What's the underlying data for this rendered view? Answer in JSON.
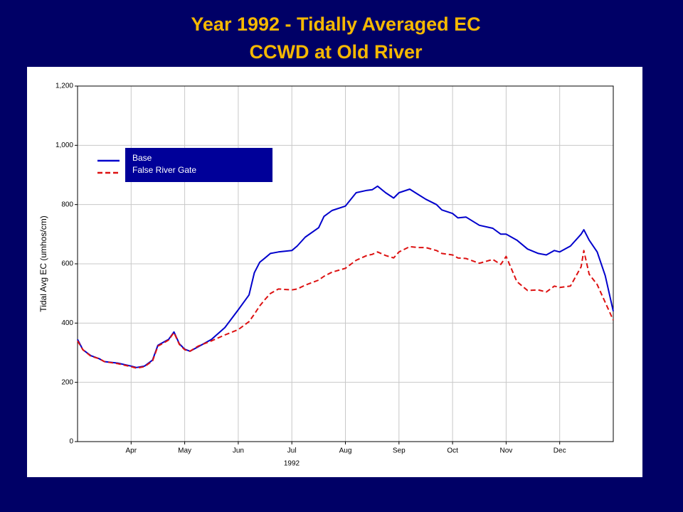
{
  "chart_data": {
    "type": "line",
    "title": "Year 1992 - Tidally Averaged EC",
    "subtitle": "CCWD at Old River",
    "ylabel": "Tidal Avg EC (umhos/cm)",
    "xlabel": "1992",
    "x": [
      3.0,
      3.1,
      3.25,
      3.4,
      3.5,
      3.75,
      4.0,
      4.1,
      4.25,
      4.4,
      4.5,
      4.6,
      4.7,
      4.8,
      4.9,
      5.0,
      5.1,
      5.25,
      5.5,
      5.75,
      6.0,
      6.2,
      6.3,
      6.4,
      6.5,
      6.6,
      6.75,
      7.0,
      7.1,
      7.25,
      7.5,
      7.6,
      7.75,
      8.0,
      8.2,
      8.4,
      8.5,
      8.6,
      8.75,
      8.9,
      9.0,
      9.2,
      9.35,
      9.5,
      9.7,
      9.8,
      10.0,
      10.1,
      10.25,
      10.5,
      10.75,
      10.9,
      11.0,
      11.2,
      11.4,
      11.6,
      11.75,
      11.9,
      12.0,
      12.2,
      12.4,
      12.45,
      12.55,
      12.7,
      12.85,
      13.0
    ],
    "series": [
      {
        "name": "Base",
        "color": "#0000cc",
        "dash": false,
        "values": [
          345,
          310,
          290,
          280,
          270,
          265,
          255,
          250,
          255,
          275,
          325,
          335,
          345,
          370,
          330,
          312,
          305,
          320,
          345,
          385,
          445,
          495,
          570,
          605,
          620,
          635,
          640,
          645,
          660,
          690,
          722,
          760,
          780,
          795,
          840,
          848,
          850,
          862,
          840,
          822,
          840,
          852,
          835,
          818,
          800,
          782,
          770,
          755,
          758,
          730,
          720,
          700,
          700,
          680,
          650,
          635,
          630,
          645,
          640,
          660,
          700,
          715,
          680,
          640,
          560,
          440
        ]
      },
      {
        "name": "False River Gate",
        "color": "#dd1111",
        "dash": true,
        "values": [
          340,
          310,
          288,
          280,
          270,
          263,
          253,
          248,
          253,
          272,
          322,
          332,
          343,
          368,
          328,
          310,
          305,
          322,
          340,
          360,
          378,
          405,
          430,
          458,
          480,
          500,
          515,
          512,
          515,
          528,
          545,
          558,
          572,
          585,
          612,
          628,
          632,
          640,
          628,
          620,
          640,
          658,
          655,
          655,
          645,
          635,
          630,
          620,
          618,
          602,
          615,
          598,
          625,
          540,
          510,
          512,
          505,
          525,
          520,
          525,
          590,
          645,
          565,
          530,
          470,
          410
        ]
      }
    ],
    "xlim": [
      3,
      13
    ],
    "xticks": [
      {
        "value": 4,
        "label": "Apr"
      },
      {
        "value": 5,
        "label": "May"
      },
      {
        "value": 6,
        "label": "Jun"
      },
      {
        "value": 7,
        "label": "Jul"
      },
      {
        "value": 8,
        "label": "Aug"
      },
      {
        "value": 9,
        "label": "Sep"
      },
      {
        "value": 10,
        "label": "Oct"
      },
      {
        "value": 11,
        "label": "Nov"
      },
      {
        "value": 12,
        "label": "Dec"
      }
    ],
    "ylim": [
      0,
      1200
    ],
    "yticks": [
      0,
      200,
      400,
      600,
      800,
      {
        "value": 1000,
        "label": "1,000"
      },
      {
        "value": 1200,
        "label": "1,200"
      }
    ],
    "grid": true,
    "legend": "upper left"
  }
}
